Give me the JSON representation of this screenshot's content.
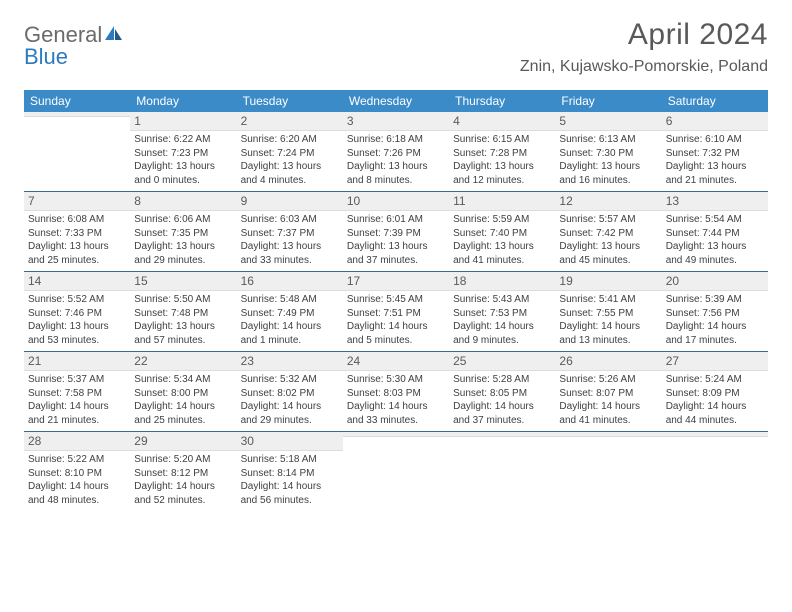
{
  "brand": {
    "part1": "General",
    "part2": "Blue"
  },
  "title": "April 2024",
  "location": "Znin, Kujawsko-Pomorskie, Poland",
  "colors": {
    "header_bg": "#3b8bc9",
    "header_text": "#ffffff",
    "week_divider": "#3b6a8f",
    "daynum_bg": "#efefef",
    "text": "#404040",
    "title_text": "#595959",
    "brand_gray": "#6b6b6b",
    "brand_blue": "#2d7bbf"
  },
  "day_names": [
    "Sunday",
    "Monday",
    "Tuesday",
    "Wednesday",
    "Thursday",
    "Friday",
    "Saturday"
  ],
  "weeks": [
    [
      {
        "n": "",
        "sr": "",
        "ss": "",
        "d1": "",
        "d2": ""
      },
      {
        "n": "1",
        "sr": "Sunrise: 6:22 AM",
        "ss": "Sunset: 7:23 PM",
        "d1": "Daylight: 13 hours",
        "d2": "and 0 minutes."
      },
      {
        "n": "2",
        "sr": "Sunrise: 6:20 AM",
        "ss": "Sunset: 7:24 PM",
        "d1": "Daylight: 13 hours",
        "d2": "and 4 minutes."
      },
      {
        "n": "3",
        "sr": "Sunrise: 6:18 AM",
        "ss": "Sunset: 7:26 PM",
        "d1": "Daylight: 13 hours",
        "d2": "and 8 minutes."
      },
      {
        "n": "4",
        "sr": "Sunrise: 6:15 AM",
        "ss": "Sunset: 7:28 PM",
        "d1": "Daylight: 13 hours",
        "d2": "and 12 minutes."
      },
      {
        "n": "5",
        "sr": "Sunrise: 6:13 AM",
        "ss": "Sunset: 7:30 PM",
        "d1": "Daylight: 13 hours",
        "d2": "and 16 minutes."
      },
      {
        "n": "6",
        "sr": "Sunrise: 6:10 AM",
        "ss": "Sunset: 7:32 PM",
        "d1": "Daylight: 13 hours",
        "d2": "and 21 minutes."
      }
    ],
    [
      {
        "n": "7",
        "sr": "Sunrise: 6:08 AM",
        "ss": "Sunset: 7:33 PM",
        "d1": "Daylight: 13 hours",
        "d2": "and 25 minutes."
      },
      {
        "n": "8",
        "sr": "Sunrise: 6:06 AM",
        "ss": "Sunset: 7:35 PM",
        "d1": "Daylight: 13 hours",
        "d2": "and 29 minutes."
      },
      {
        "n": "9",
        "sr": "Sunrise: 6:03 AM",
        "ss": "Sunset: 7:37 PM",
        "d1": "Daylight: 13 hours",
        "d2": "and 33 minutes."
      },
      {
        "n": "10",
        "sr": "Sunrise: 6:01 AM",
        "ss": "Sunset: 7:39 PM",
        "d1": "Daylight: 13 hours",
        "d2": "and 37 minutes."
      },
      {
        "n": "11",
        "sr": "Sunrise: 5:59 AM",
        "ss": "Sunset: 7:40 PM",
        "d1": "Daylight: 13 hours",
        "d2": "and 41 minutes."
      },
      {
        "n": "12",
        "sr": "Sunrise: 5:57 AM",
        "ss": "Sunset: 7:42 PM",
        "d1": "Daylight: 13 hours",
        "d2": "and 45 minutes."
      },
      {
        "n": "13",
        "sr": "Sunrise: 5:54 AM",
        "ss": "Sunset: 7:44 PM",
        "d1": "Daylight: 13 hours",
        "d2": "and 49 minutes."
      }
    ],
    [
      {
        "n": "14",
        "sr": "Sunrise: 5:52 AM",
        "ss": "Sunset: 7:46 PM",
        "d1": "Daylight: 13 hours",
        "d2": "and 53 minutes."
      },
      {
        "n": "15",
        "sr": "Sunrise: 5:50 AM",
        "ss": "Sunset: 7:48 PM",
        "d1": "Daylight: 13 hours",
        "d2": "and 57 minutes."
      },
      {
        "n": "16",
        "sr": "Sunrise: 5:48 AM",
        "ss": "Sunset: 7:49 PM",
        "d1": "Daylight: 14 hours",
        "d2": "and 1 minute."
      },
      {
        "n": "17",
        "sr": "Sunrise: 5:45 AM",
        "ss": "Sunset: 7:51 PM",
        "d1": "Daylight: 14 hours",
        "d2": "and 5 minutes."
      },
      {
        "n": "18",
        "sr": "Sunrise: 5:43 AM",
        "ss": "Sunset: 7:53 PM",
        "d1": "Daylight: 14 hours",
        "d2": "and 9 minutes."
      },
      {
        "n": "19",
        "sr": "Sunrise: 5:41 AM",
        "ss": "Sunset: 7:55 PM",
        "d1": "Daylight: 14 hours",
        "d2": "and 13 minutes."
      },
      {
        "n": "20",
        "sr": "Sunrise: 5:39 AM",
        "ss": "Sunset: 7:56 PM",
        "d1": "Daylight: 14 hours",
        "d2": "and 17 minutes."
      }
    ],
    [
      {
        "n": "21",
        "sr": "Sunrise: 5:37 AM",
        "ss": "Sunset: 7:58 PM",
        "d1": "Daylight: 14 hours",
        "d2": "and 21 minutes."
      },
      {
        "n": "22",
        "sr": "Sunrise: 5:34 AM",
        "ss": "Sunset: 8:00 PM",
        "d1": "Daylight: 14 hours",
        "d2": "and 25 minutes."
      },
      {
        "n": "23",
        "sr": "Sunrise: 5:32 AM",
        "ss": "Sunset: 8:02 PM",
        "d1": "Daylight: 14 hours",
        "d2": "and 29 minutes."
      },
      {
        "n": "24",
        "sr": "Sunrise: 5:30 AM",
        "ss": "Sunset: 8:03 PM",
        "d1": "Daylight: 14 hours",
        "d2": "and 33 minutes."
      },
      {
        "n": "25",
        "sr": "Sunrise: 5:28 AM",
        "ss": "Sunset: 8:05 PM",
        "d1": "Daylight: 14 hours",
        "d2": "and 37 minutes."
      },
      {
        "n": "26",
        "sr": "Sunrise: 5:26 AM",
        "ss": "Sunset: 8:07 PM",
        "d1": "Daylight: 14 hours",
        "d2": "and 41 minutes."
      },
      {
        "n": "27",
        "sr": "Sunrise: 5:24 AM",
        "ss": "Sunset: 8:09 PM",
        "d1": "Daylight: 14 hours",
        "d2": "and 44 minutes."
      }
    ],
    [
      {
        "n": "28",
        "sr": "Sunrise: 5:22 AM",
        "ss": "Sunset: 8:10 PM",
        "d1": "Daylight: 14 hours",
        "d2": "and 48 minutes."
      },
      {
        "n": "29",
        "sr": "Sunrise: 5:20 AM",
        "ss": "Sunset: 8:12 PM",
        "d1": "Daylight: 14 hours",
        "d2": "and 52 minutes."
      },
      {
        "n": "30",
        "sr": "Sunrise: 5:18 AM",
        "ss": "Sunset: 8:14 PM",
        "d1": "Daylight: 14 hours",
        "d2": "and 56 minutes."
      },
      {
        "n": "",
        "sr": "",
        "ss": "",
        "d1": "",
        "d2": ""
      },
      {
        "n": "",
        "sr": "",
        "ss": "",
        "d1": "",
        "d2": ""
      },
      {
        "n": "",
        "sr": "",
        "ss": "",
        "d1": "",
        "d2": ""
      },
      {
        "n": "",
        "sr": "",
        "ss": "",
        "d1": "",
        "d2": ""
      }
    ]
  ]
}
